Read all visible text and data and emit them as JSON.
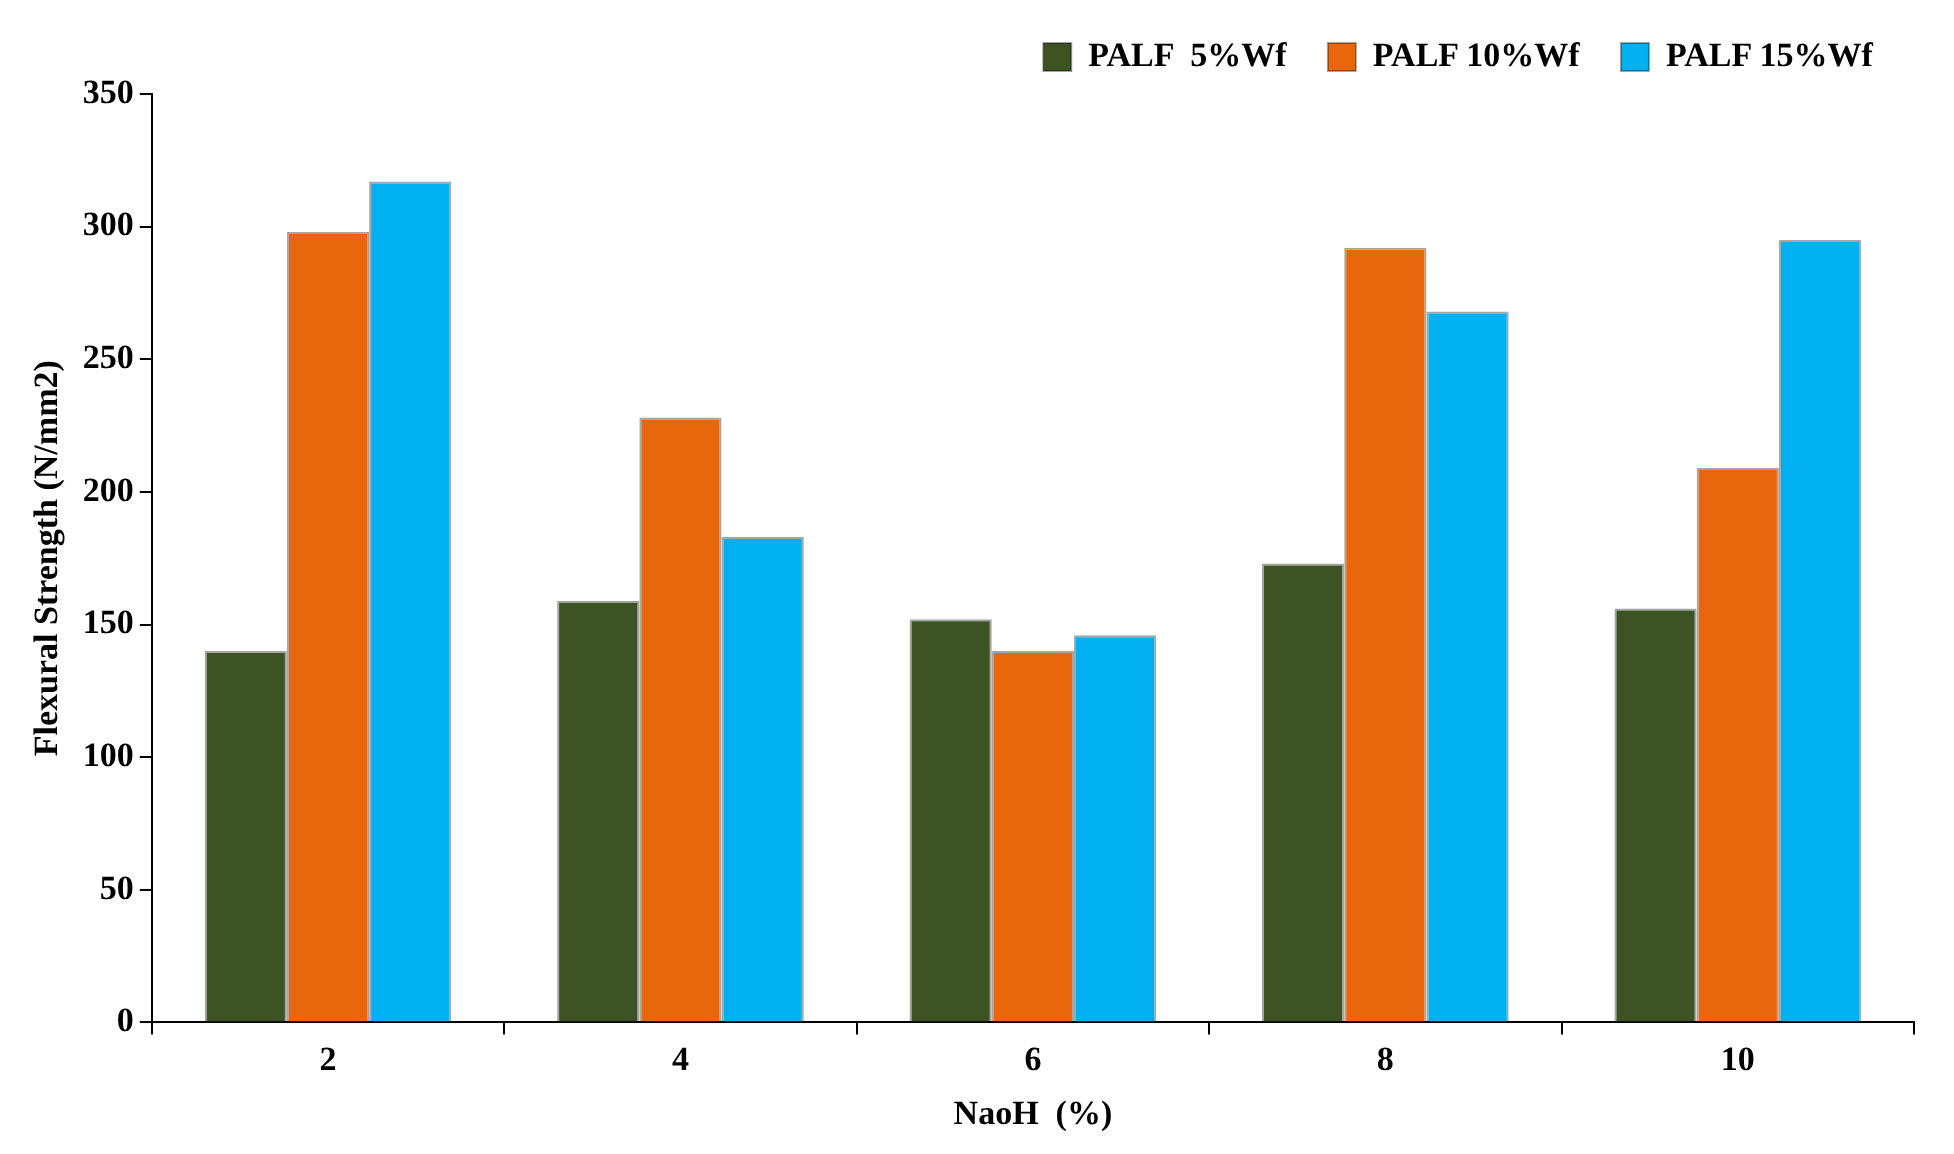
{
  "chart_data": {
    "type": "bar",
    "xlabel": "NaoH  (%)",
    "ylabel": "Flexural Strength (N/mm2)",
    "categories": [
      "2",
      "4",
      "6",
      "8",
      "10"
    ],
    "series": [
      {
        "name": "PALF  5%Wf",
        "color": "#3d5323",
        "values": [
          140,
          159,
          152,
          173,
          156
        ]
      },
      {
        "name": "PALF 10%Wf",
        "color": "#e8670c",
        "values": [
          298,
          228,
          140,
          292,
          209
        ]
      },
      {
        "name": "PALF 15%Wf",
        "color": "#00b0f0",
        "values": [
          317,
          183,
          146,
          268,
          295
        ]
      }
    ],
    "ylim": [
      0,
      350
    ],
    "yticks": [
      0,
      50,
      100,
      150,
      200,
      250,
      300,
      350
    ],
    "grid": false,
    "legend": "top right"
  }
}
